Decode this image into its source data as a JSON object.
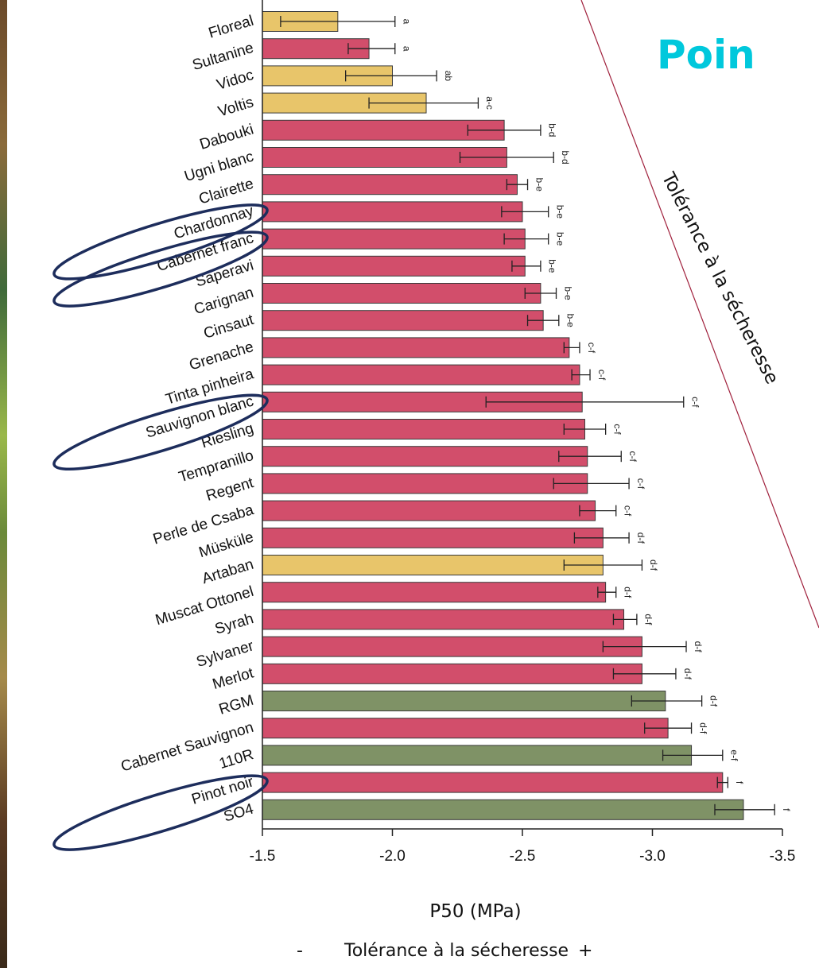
{
  "slide": {
    "heading": "Poin",
    "side_caption": "Tolérance à la sécheresse",
    "bottom_minus": "-",
    "bottom_caption": "Tolérance à la sécheresse",
    "bottom_plus": "+"
  },
  "colors": {
    "red": "#d24e6b",
    "yellow": "#e8c56a",
    "green": "#7f9266",
    "highlight_ring": "#1d2d5c",
    "diagonal_line": "#a0203c"
  },
  "chart_data": {
    "type": "bar",
    "orientation": "horizontal",
    "xlabel": "P50 (MPa)",
    "xlim": [
      -1.5,
      -3.5
    ],
    "xticks": [
      -1.5,
      -2.0,
      -2.5,
      -3.0,
      -3.5
    ],
    "xtick_labels": [
      "-1.5",
      "-2.0",
      "-2.5",
      "-3.0",
      "-3.5"
    ],
    "grid": false,
    "categories": [
      "Floreal",
      "Sultanine",
      "Vidoc",
      "Voltis",
      "Dabouki",
      "Ugni blanc",
      "Clairette",
      "Chardonnay",
      "Cabernet franc",
      "Saperavi",
      "Carignan",
      "Cinsaut",
      "Grenache",
      "Tinta pinheira",
      "Sauvignon blanc",
      "Riesling",
      "Tempranillo",
      "Regent",
      "Perle de Csaba",
      "Müsküle",
      "Artaban",
      "Muscat Ottonel",
      "Syrah",
      "Sylvaner",
      "Merlot",
      "RGM",
      "Cabernet Sauvignon",
      "110R",
      "Pinot noir",
      "SO4"
    ],
    "values": [
      -1.79,
      -1.91,
      -2.0,
      -2.13,
      -2.43,
      -2.44,
      -2.48,
      -2.5,
      -2.51,
      -2.51,
      -2.57,
      -2.58,
      -2.68,
      -2.72,
      -2.73,
      -2.74,
      -2.75,
      -2.75,
      -2.78,
      -2.81,
      -2.81,
      -2.82,
      -2.89,
      -2.96,
      -2.96,
      -3.05,
      -3.06,
      -3.15,
      -3.27,
      -3.35
    ],
    "error_low": [
      -1.57,
      -1.83,
      -1.82,
      -1.91,
      -2.29,
      -2.26,
      -2.44,
      -2.42,
      -2.43,
      -2.46,
      -2.51,
      -2.52,
      -2.66,
      -2.69,
      -2.36,
      -2.66,
      -2.64,
      -2.62,
      -2.72,
      -2.7,
      -2.66,
      -2.79,
      -2.85,
      -2.81,
      -2.85,
      -2.92,
      -2.97,
      -3.04,
      -3.25,
      -3.24
    ],
    "error_high": [
      -2.01,
      -2.01,
      -2.17,
      -2.33,
      -2.57,
      -2.62,
      -2.52,
      -2.6,
      -2.6,
      -2.57,
      -2.63,
      -2.64,
      -2.72,
      -2.76,
      -3.12,
      -2.82,
      -2.88,
      -2.91,
      -2.86,
      -2.91,
      -2.96,
      -2.86,
      -2.94,
      -3.13,
      -3.09,
      -3.19,
      -3.15,
      -3.27,
      -3.29,
      -3.47
    ],
    "groups": [
      "yellow",
      "red",
      "yellow",
      "yellow",
      "red",
      "red",
      "red",
      "red",
      "red",
      "red",
      "red",
      "red",
      "red",
      "red",
      "red",
      "red",
      "red",
      "red",
      "red",
      "red",
      "yellow",
      "red",
      "red",
      "red",
      "red",
      "green",
      "red",
      "green",
      "red",
      "green"
    ],
    "significance": [
      "a",
      "a",
      "ab",
      "a-c",
      "b-d",
      "b-d",
      "b-e",
      "b-e",
      "b-e",
      "b-e",
      "b-e",
      "b-e",
      "c-f",
      "c-f",
      "c-f",
      "c-f",
      "c-f",
      "c-f",
      "c-f",
      "d-f",
      "d-f",
      "d-f",
      "d-f",
      "d-f",
      "d-f",
      "d-f",
      "d-f",
      "e-f",
      "f",
      "f"
    ],
    "highlighted_categories": [
      "Chardonnay",
      "Cabernet franc",
      "Sauvignon blanc",
      "Pinot noir"
    ]
  }
}
